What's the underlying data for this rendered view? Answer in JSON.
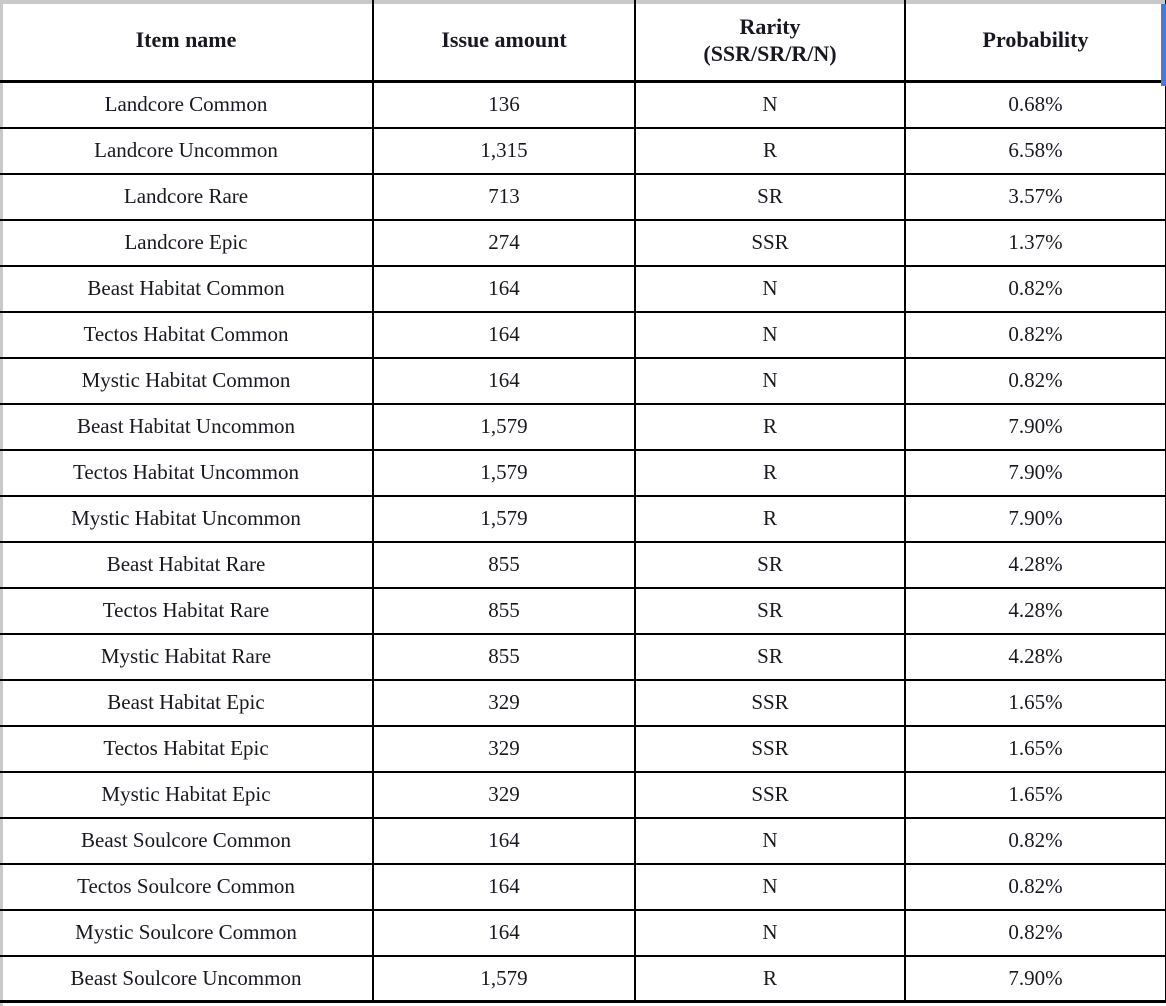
{
  "colors": {
    "table_border": "#000000",
    "page_edge_gray": "#c9c9c9",
    "highlight_blue": "#4379e8",
    "text": "#181820",
    "background": "#ffffff"
  },
  "table": {
    "columns": [
      {
        "key": "item",
        "label": "Item name"
      },
      {
        "key": "issue_amount",
        "label": "Issue amount"
      },
      {
        "key": "rarity",
        "label": "Rarity\n(SSR/SR/R/N)"
      },
      {
        "key": "probability",
        "label": "Probability"
      }
    ],
    "rows": [
      {
        "item": "Landcore Common",
        "issue_amount": "136",
        "rarity": "N",
        "probability": "0.68%"
      },
      {
        "item": "Landcore Uncommon",
        "issue_amount": "1,315",
        "rarity": "R",
        "probability": "6.58%"
      },
      {
        "item": "Landcore Rare",
        "issue_amount": "713",
        "rarity": "SR",
        "probability": "3.57%"
      },
      {
        "item": "Landcore Epic",
        "issue_amount": "274",
        "rarity": "SSR",
        "probability": "1.37%"
      },
      {
        "item": "Beast Habitat Common",
        "issue_amount": "164",
        "rarity": "N",
        "probability": "0.82%"
      },
      {
        "item": "Tectos Habitat Common",
        "issue_amount": "164",
        "rarity": "N",
        "probability": "0.82%"
      },
      {
        "item": "Mystic Habitat Common",
        "issue_amount": "164",
        "rarity": "N",
        "probability": "0.82%"
      },
      {
        "item": "Beast Habitat Uncommon",
        "issue_amount": "1,579",
        "rarity": "R",
        "probability": "7.90%"
      },
      {
        "item": "Tectos Habitat Uncommon",
        "issue_amount": "1,579",
        "rarity": "R",
        "probability": "7.90%"
      },
      {
        "item": "Mystic Habitat Uncommon",
        "issue_amount": "1,579",
        "rarity": "R",
        "probability": "7.90%"
      },
      {
        "item": "Beast Habitat Rare",
        "issue_amount": "855",
        "rarity": "SR",
        "probability": "4.28%"
      },
      {
        "item": "Tectos Habitat Rare",
        "issue_amount": "855",
        "rarity": "SR",
        "probability": "4.28%"
      },
      {
        "item": "Mystic Habitat Rare",
        "issue_amount": "855",
        "rarity": "SR",
        "probability": "4.28%"
      },
      {
        "item": "Beast Habitat Epic",
        "issue_amount": "329",
        "rarity": "SSR",
        "probability": "1.65%"
      },
      {
        "item": "Tectos Habitat Epic",
        "issue_amount": "329",
        "rarity": "SSR",
        "probability": "1.65%"
      },
      {
        "item": "Mystic Habitat Epic",
        "issue_amount": "329",
        "rarity": "SSR",
        "probability": "1.65%"
      },
      {
        "item": "Beast Soulcore Common",
        "issue_amount": "164",
        "rarity": "N",
        "probability": "0.82%"
      },
      {
        "item": "Tectos Soulcore Common",
        "issue_amount": "164",
        "rarity": "N",
        "probability": "0.82%"
      },
      {
        "item": "Mystic Soulcore Common",
        "issue_amount": "164",
        "rarity": "N",
        "probability": "0.82%"
      },
      {
        "item": "Beast Soulcore Uncommon",
        "issue_amount": "1,579",
        "rarity": "R",
        "probability": "7.90%"
      }
    ]
  }
}
